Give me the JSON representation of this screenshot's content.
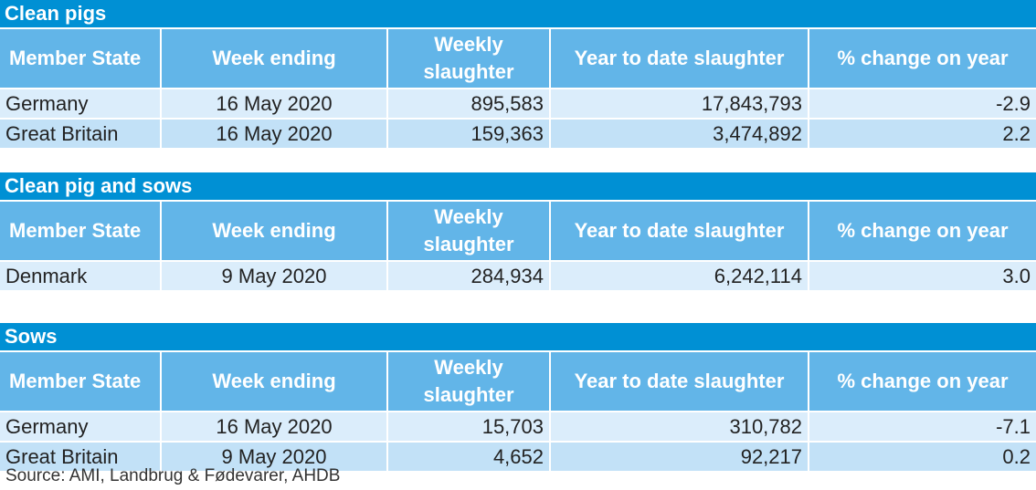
{
  "columns": [
    "Member State",
    "Week ending",
    "Weekly slaughter",
    "Year to date slaughter",
    "% change on year"
  ],
  "sections": [
    {
      "title": "Clean pigs",
      "rows": [
        [
          "Germany",
          "16 May 2020",
          "895,583",
          "17,843,793",
          "-2.9"
        ],
        [
          "Great Britain",
          "16 May 2020",
          "159,363",
          "3,474,892",
          "2.2"
        ]
      ]
    },
    {
      "title": "Clean pig and sows",
      "rows": [
        [
          "Denmark",
          "9 May 2020",
          "284,934",
          "6,242,114",
          "3.0"
        ]
      ]
    },
    {
      "title": "Sows",
      "rows": [
        [
          "Germany",
          "16 May 2020",
          "15,703",
          "310,782",
          "-7.1"
        ],
        [
          "Great Britain",
          "9 May 2020",
          "4,652",
          "92,217",
          "0.2"
        ]
      ]
    }
  ],
  "source": "Source: AMI, Landbrug & Fødevarer,  AHDB"
}
